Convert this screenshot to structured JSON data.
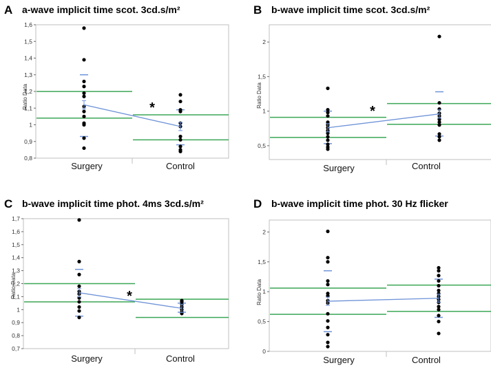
{
  "colors": {
    "green": "#3aa655",
    "blue": "#6f93d8",
    "dot": "#000000",
    "frame": "#bfbfbf"
  },
  "chart_data": [
    {
      "panel": "A",
      "title": "a-wave implicit time scot. 3cd.s/m²",
      "type": "scatter",
      "ylabel": "Ratio Data",
      "ylim": [
        0.8,
        1.6
      ],
      "yticks": [
        "0,8",
        "0,9",
        "1",
        "1,1",
        "1,2",
        "1,3",
        "1,4",
        "1,5",
        "1,6"
      ],
      "categories": [
        "Surgery",
        "Control"
      ],
      "groups": [
        {
          "name": "Surgery",
          "points": [
            1.58,
            1.39,
            1.26,
            1.23,
            1.19,
            1.17,
            1.11,
            1.08,
            1.05,
            1.01,
            1.0,
            0.92,
            0.86
          ],
          "mean": 1.12,
          "sd_upper": 1.3,
          "sd_lower": 0.93,
          "ci_upper": 1.2,
          "ci_lower": 1.04
        },
        {
          "name": "Control",
          "points": [
            1.18,
            1.14,
            1.09,
            1.08,
            1.01,
            0.99,
            0.93,
            0.91,
            0.87,
            0.85,
            0.84
          ],
          "mean": 0.99,
          "sd_upper": 1.09,
          "sd_lower": 0.88,
          "ci_upper": 1.06,
          "ci_lower": 0.91
        }
      ],
      "annotation": "*"
    },
    {
      "panel": "B",
      "title": "b-wave implicit time scot. 3cd.s/m²",
      "type": "scatter",
      "ylabel": "Ratio Data",
      "ylim": [
        0.3,
        2.25
      ],
      "yticks": [
        "0,5",
        "1",
        "1,5",
        "2"
      ],
      "categories": [
        "Surgery",
        "Control"
      ],
      "groups": [
        {
          "name": "Surgery",
          "points": [
            1.33,
            1.02,
            0.98,
            0.93,
            0.84,
            0.8,
            0.76,
            0.72,
            0.68,
            0.63,
            0.58,
            0.52,
            0.48,
            0.45
          ],
          "mean": 0.76,
          "sd_upper": 1.0,
          "sd_lower": 0.53,
          "ci_upper": 0.91,
          "ci_lower": 0.62
        },
        {
          "name": "Control",
          "points": [
            2.08,
            1.12,
            1.03,
            0.97,
            0.93,
            0.88,
            0.84,
            0.8,
            0.67,
            0.63,
            0.58
          ],
          "mean": 0.96,
          "sd_upper": 1.28,
          "sd_lower": 0.64,
          "ci_upper": 1.11,
          "ci_lower": 0.81
        }
      ],
      "annotation": "*"
    },
    {
      "panel": "C",
      "title": "b-wave implicit time phot. 4ms 3cd.s/m²",
      "type": "scatter",
      "ylabel": "Ratio Data",
      "ylim": [
        0.7,
        1.7
      ],
      "yticks": [
        "0,7",
        "0,8",
        "0,9",
        "1",
        "1,1",
        "1,2",
        "1,3",
        "1,4",
        "1,5",
        "1,6",
        "1,7"
      ],
      "categories": [
        "Surgery",
        "Control"
      ],
      "groups": [
        {
          "name": "Surgery",
          "points": [
            1.69,
            1.37,
            1.27,
            1.18,
            1.14,
            1.12,
            1.09,
            1.06,
            1.02,
            0.99,
            0.94
          ],
          "mean": 1.13,
          "sd_upper": 1.31,
          "sd_lower": 0.95,
          "ci_upper": 1.2,
          "ci_lower": 1.06
        },
        {
          "name": "Control",
          "points": [
            1.07,
            1.06,
            1.04,
            1.02,
            1.0,
            0.98,
            0.97
          ],
          "mean": 1.01,
          "sd_upper": 1.05,
          "sd_lower": 0.98,
          "ci_upper": 1.08,
          "ci_lower": 0.94
        }
      ],
      "annotation": "*"
    },
    {
      "panel": "D",
      "title": "b-wave implicit time phot. 30 Hz flicker",
      "type": "scatter",
      "ylabel": "Ratio Data",
      "ylim": [
        0,
        2.2
      ],
      "yticks": [
        "0",
        "0,5",
        "1",
        "1,5",
        "2"
      ],
      "categories": [
        "Surgery",
        "Control"
      ],
      "groups": [
        {
          "name": "Surgery",
          "points": [
            2.01,
            1.57,
            1.5,
            1.18,
            1.12,
            0.97,
            0.93,
            0.85,
            0.81,
            0.63,
            0.51,
            0.4,
            0.28,
            0.15,
            0.08
          ],
          "mean": 0.84,
          "sd_upper": 1.35,
          "sd_lower": 0.33,
          "ci_upper": 1.06,
          "ci_lower": 0.62
        },
        {
          "name": "Control",
          "points": [
            1.4,
            1.35,
            1.27,
            1.18,
            1.1,
            1.02,
            0.97,
            0.92,
            0.87,
            0.82,
            0.75,
            0.7,
            0.6,
            0.5,
            0.3
          ],
          "mean": 0.89,
          "sd_upper": 1.21,
          "sd_lower": 0.57,
          "ci_upper": 1.11,
          "ci_lower": 0.67
        }
      ],
      "annotation": ""
    }
  ]
}
